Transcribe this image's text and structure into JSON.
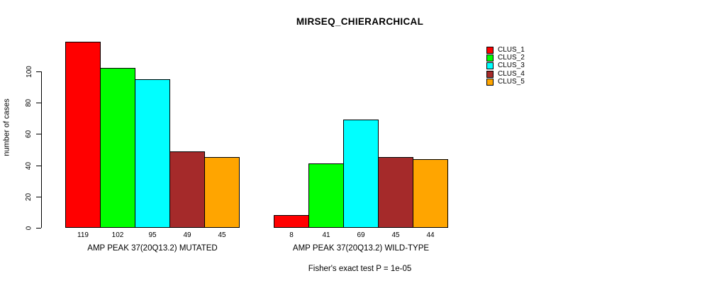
{
  "chart_data": {
    "type": "bar",
    "title": "MIRSEQ_CHIERARCHICAL",
    "ylabel": "number of cases",
    "xlabel": "",
    "ylim": [
      0,
      125
    ],
    "yticks": [
      0,
      20,
      40,
      60,
      80,
      100
    ],
    "grid": false,
    "bar_value_labels_shown": true,
    "legend_position": "top-right",
    "categories": [
      "AMP PEAK 37(20Q13.2) MUTATED",
      "AMP PEAK 37(20Q13.2) WILD-TYPE"
    ],
    "series": [
      {
        "name": "CLUS_1",
        "color": "#FF0000",
        "values": [
          119,
          8
        ]
      },
      {
        "name": "CLUS_2",
        "color": "#00FF00",
        "values": [
          102,
          41
        ]
      },
      {
        "name": "CLUS_3",
        "color": "#00FFFF",
        "values": [
          95,
          69
        ]
      },
      {
        "name": "CLUS_4",
        "color": "#A52A2A",
        "values": [
          49,
          45
        ]
      },
      {
        "name": "CLUS_5",
        "color": "#FFA500",
        "values": [
          45,
          44
        ]
      }
    ],
    "footnote": "Fisher's exact test P = 1e-05",
    "axis_color": "#000000",
    "bar_border_color": "#000000"
  }
}
